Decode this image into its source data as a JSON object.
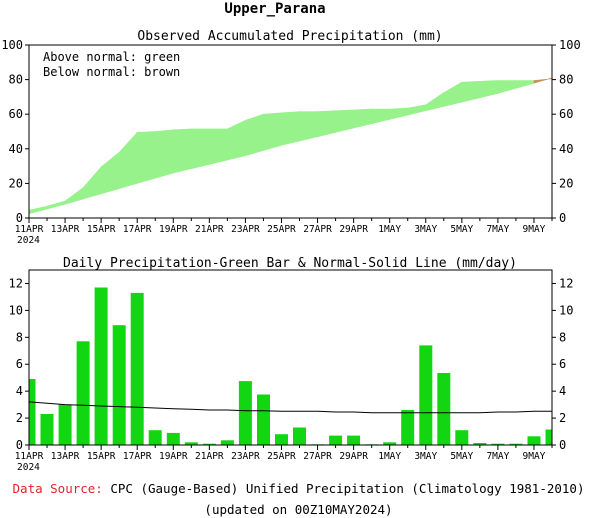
{
  "figure_title": "Upper_Parana",
  "footer": {
    "source_label": "Data Source:",
    "source_text": "CPC (Gauge-Based) Unified Precipitation (Climatology 1981-2010)",
    "updated": "(updated on 00Z10MAY2024)",
    "label_color": "#e2242a"
  },
  "colors": {
    "green_area": "#98f28c",
    "green_bar": "#12d612",
    "normal_line": "#000000"
  },
  "chart_data": [
    {
      "type": "area",
      "title": "Observed Accumulated Precipitation (mm)",
      "notes": [
        "Above normal: green",
        "Below normal: brown"
      ],
      "ylim": [
        0,
        100
      ],
      "yticks": [
        0,
        20,
        40,
        60,
        80,
        100
      ],
      "xlim": [
        0,
        29
      ],
      "xtick_labels": [
        "11APR",
        "13APR",
        "15APR",
        "17APR",
        "19APR",
        "21APR",
        "23APR",
        "25APR",
        "27APR",
        "29APR",
        "1MAY",
        "3MAY",
        "5MAY",
        "7MAY",
        "9MAY"
      ],
      "year_label": "2024",
      "series": [
        {
          "values": [
            4.5,
            6.8,
            9.8,
            17.5,
            29.5,
            38,
            49.5,
            50,
            51,
            51.5,
            51.5,
            51.5,
            56.5,
            60,
            60.8,
            61.5,
            61.5,
            62,
            62.5,
            63,
            63,
            63.5,
            65.5,
            72.5,
            78.5,
            79,
            79.5,
            79.5,
            79.5,
            80.5
          ]
        },
        {
          "values": [
            2.5,
            5.2,
            8,
            11,
            14,
            17,
            20,
            23,
            26,
            28.5,
            31,
            33.5,
            36,
            39,
            42,
            44.5,
            47,
            49.5,
            52,
            54.5,
            57,
            59.5,
            62,
            64.5,
            67,
            69.5,
            72,
            75,
            78,
            81
          ]
        }
      ]
    },
    {
      "type": "bar",
      "title": "Daily Precipitation-Green Bar & Normal-Solid Line (mm/day)",
      "ylim": [
        0,
        13
      ],
      "yticks": [
        0,
        2,
        4,
        6,
        8,
        10,
        12
      ],
      "xlim": [
        0,
        29
      ],
      "xtick_labels": [
        "11APR",
        "13APR",
        "15APR",
        "17APR",
        "19APR",
        "21APR",
        "23APR",
        "25APR",
        "27APR",
        "29APR",
        "1MAY",
        "3MAY",
        "5MAY",
        "7MAY",
        "9MAY"
      ],
      "year_label": "2024",
      "series": [
        {
          "values": [
            4.9,
            2.3,
            3.0,
            7.7,
            11.7,
            8.9,
            11.3,
            1.1,
            0.9,
            0.2,
            0.1,
            0.35,
            4.75,
            3.75,
            0.8,
            1.3,
            0.05,
            0.7,
            0.7,
            0.05,
            0.2,
            2.6,
            7.4,
            5.35,
            1.1,
            0.15,
            0.1,
            0.1,
            0.65,
            1.15
          ]
        },
        {
          "values": [
            3.2,
            3.1,
            3.0,
            2.95,
            2.9,
            2.85,
            2.8,
            2.75,
            2.7,
            2.65,
            2.6,
            2.6,
            2.55,
            2.55,
            2.5,
            2.5,
            2.5,
            2.45,
            2.45,
            2.4,
            2.4,
            2.4,
            2.4,
            2.4,
            2.4,
            2.4,
            2.45,
            2.45,
            2.5,
            2.5
          ]
        }
      ]
    }
  ]
}
